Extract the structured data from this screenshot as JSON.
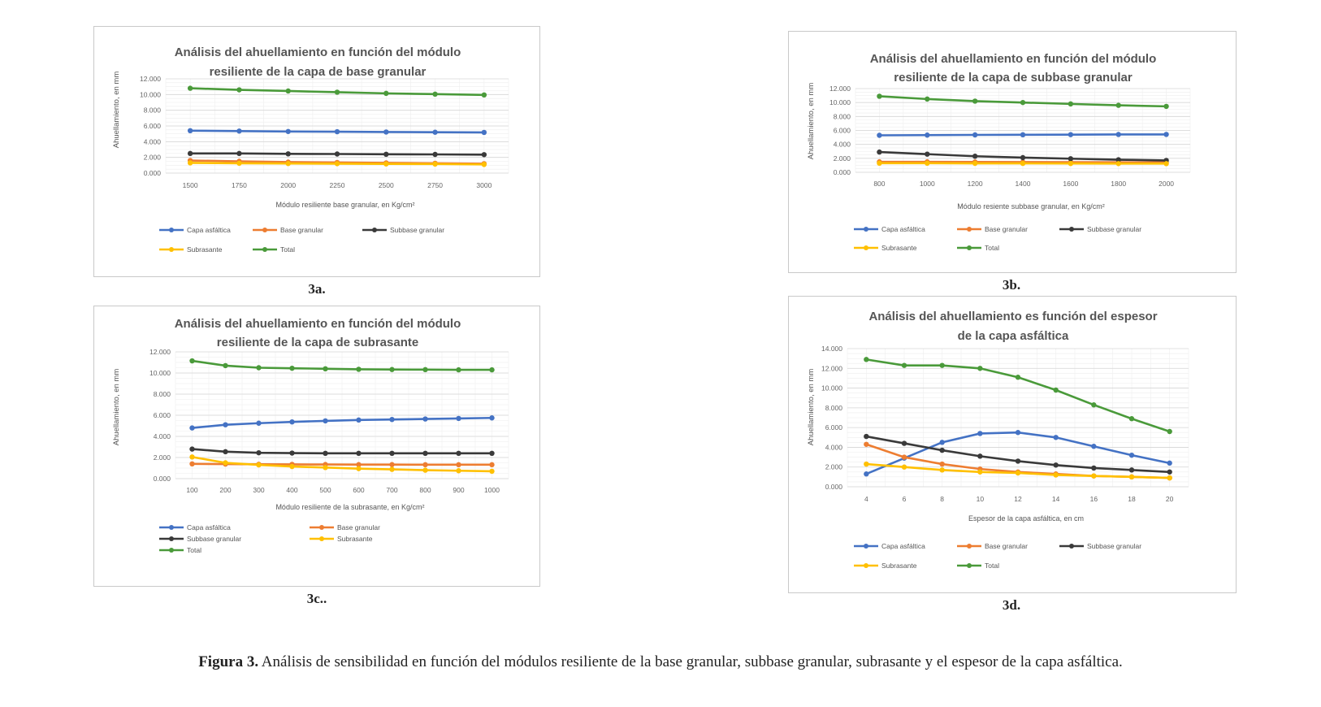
{
  "caption": {
    "label": "Figura 3.",
    "text": "Análisis de sensibilidad en función del módulos resiliente de la base granular, subbase granular, subrasante y el espesor de la capa asfáltica."
  },
  "panel_labels": [
    "3a.",
    "3b.",
    "3c..",
    "3d."
  ],
  "series_colors": {
    "Capa asfáltica": "#4472c4",
    "Base granular": "#ed7d31",
    "Subbase granular": "#3a3a3a",
    "Subrasante": "#ffc000",
    "Total": "#4a9a3a"
  },
  "chart_data": [
    {
      "type": "line",
      "title": [
        "Análisis del ahuellamiento en función del módulo",
        "resiliente de la capa de base granular"
      ],
      "xlabel": "Módulo resiliente base granular, en Kg/cm²",
      "ylabel": "Ahuellamiento, en mm",
      "categories": [
        "1500",
        "1750",
        "2000",
        "2250",
        "2500",
        "2750",
        "3000"
      ],
      "ylim": [
        0,
        12
      ],
      "yticks": [
        "0.000",
        "2.000",
        "4.000",
        "6.000",
        "8.000",
        "10.000",
        "12.000"
      ],
      "grid": true,
      "legend": "bottom",
      "series": [
        {
          "name": "Capa asfáltica",
          "values": [
            5.4,
            5.35,
            5.3,
            5.27,
            5.23,
            5.2,
            5.18
          ]
        },
        {
          "name": "Base granular",
          "values": [
            1.6,
            1.5,
            1.4,
            1.35,
            1.3,
            1.25,
            1.2
          ]
        },
        {
          "name": "Subbase granular",
          "values": [
            2.5,
            2.5,
            2.45,
            2.43,
            2.4,
            2.38,
            2.35
          ]
        },
        {
          "name": "Subrasante",
          "values": [
            1.3,
            1.25,
            1.22,
            1.2,
            1.17,
            1.15,
            1.1
          ]
        },
        {
          "name": "Total",
          "values": [
            10.8,
            10.6,
            10.45,
            10.3,
            10.15,
            10.05,
            9.95
          ]
        }
      ]
    },
    {
      "type": "line",
      "title": [
        "Análisis del ahuellamiento en función del módulo",
        "resiliente de la capa de subbase granular"
      ],
      "xlabel": "Módulo resiente subbase granular, en Kg/cm²",
      "ylabel": "Ahuellamiento, en mm",
      "categories": [
        "800",
        "1000",
        "1200",
        "1400",
        "1600",
        "1800",
        "2000"
      ],
      "ylim": [
        0,
        12
      ],
      "yticks": [
        "0.000",
        "2.000",
        "4.000",
        "6.000",
        "8.000",
        "10.000",
        "12.000"
      ],
      "grid": true,
      "legend": "bottom",
      "series": [
        {
          "name": "Capa asfáltica",
          "values": [
            5.3,
            5.33,
            5.36,
            5.38,
            5.4,
            5.42,
            5.43
          ]
        },
        {
          "name": "Base granular",
          "values": [
            1.5,
            1.5,
            1.48,
            1.46,
            1.45,
            1.43,
            1.42
          ]
        },
        {
          "name": "Subbase granular",
          "values": [
            2.9,
            2.6,
            2.3,
            2.1,
            1.95,
            1.8,
            1.7
          ]
        },
        {
          "name": "Subrasante",
          "values": [
            1.3,
            1.3,
            1.28,
            1.27,
            1.26,
            1.25,
            1.24
          ]
        },
        {
          "name": "Total",
          "values": [
            10.9,
            10.5,
            10.2,
            10.0,
            9.8,
            9.6,
            9.45
          ]
        }
      ]
    },
    {
      "type": "line",
      "title": [
        "Análisis del ahuellamiento en función del módulo",
        "resiliente de la capa de subrasante"
      ],
      "xlabel": "Módulo resiliente de la subrasante, en Kg/cm²",
      "ylabel": "Ahuellamiento, en mm",
      "categories": [
        "100",
        "200",
        "300",
        "400",
        "500",
        "600",
        "700",
        "800",
        "900",
        "1000"
      ],
      "ylim": [
        0,
        12
      ],
      "yticks": [
        "0.000",
        "2.000",
        "4.000",
        "6.000",
        "8.000",
        "10.000",
        "12.000"
      ],
      "grid": true,
      "legend": "bottom",
      "series": [
        {
          "name": "Capa asfáltica",
          "values": [
            4.8,
            5.1,
            5.25,
            5.37,
            5.47,
            5.55,
            5.6,
            5.65,
            5.7,
            5.75
          ]
        },
        {
          "name": "Base granular",
          "values": [
            1.4,
            1.38,
            1.36,
            1.35,
            1.34,
            1.33,
            1.33,
            1.32,
            1.32,
            1.32
          ]
        },
        {
          "name": "Subbase granular",
          "values": [
            2.8,
            2.55,
            2.45,
            2.42,
            2.4,
            2.4,
            2.4,
            2.4,
            2.4,
            2.4
          ]
        },
        {
          "name": "Subrasante",
          "values": [
            2.05,
            1.5,
            1.3,
            1.15,
            1.05,
            0.95,
            0.88,
            0.8,
            0.75,
            0.7
          ]
        },
        {
          "name": "Total",
          "values": [
            11.15,
            10.7,
            10.5,
            10.45,
            10.4,
            10.35,
            10.33,
            10.32,
            10.3,
            10.3
          ]
        }
      ]
    },
    {
      "type": "line",
      "title": [
        "Análisis del ahuellamiento es función del espesor",
        "de la capa asfáltica"
      ],
      "xlabel": "Espesor de la capa asfáltica, en cm",
      "ylabel": "Ahuellamiento, en mm",
      "categories": [
        "4",
        "6",
        "8",
        "10",
        "12",
        "14",
        "16",
        "18",
        "20"
      ],
      "ylim": [
        0,
        14
      ],
      "yticks": [
        "0.000",
        "2.000",
        "4.000",
        "6.000",
        "8.000",
        "10.000",
        "12.000",
        "14.000"
      ],
      "grid": true,
      "legend": "bottom",
      "series": [
        {
          "name": "Capa asfáltica",
          "values": [
            1.3,
            2.9,
            4.5,
            5.4,
            5.5,
            5.0,
            4.1,
            3.2,
            2.4
          ]
        },
        {
          "name": "Base granular",
          "values": [
            4.3,
            3.0,
            2.3,
            1.8,
            1.5,
            1.3,
            1.1,
            1.0,
            0.9
          ]
        },
        {
          "name": "Subbase granular",
          "values": [
            5.1,
            4.4,
            3.7,
            3.1,
            2.6,
            2.2,
            1.9,
            1.7,
            1.5
          ]
        },
        {
          "name": "Subrasante",
          "values": [
            2.3,
            2.0,
            1.7,
            1.5,
            1.4,
            1.2,
            1.1,
            1.0,
            0.9
          ]
        },
        {
          "name": "Total",
          "values": [
            12.9,
            12.3,
            12.3,
            12.0,
            11.1,
            9.8,
            8.3,
            6.9,
            5.6
          ]
        }
      ]
    }
  ]
}
